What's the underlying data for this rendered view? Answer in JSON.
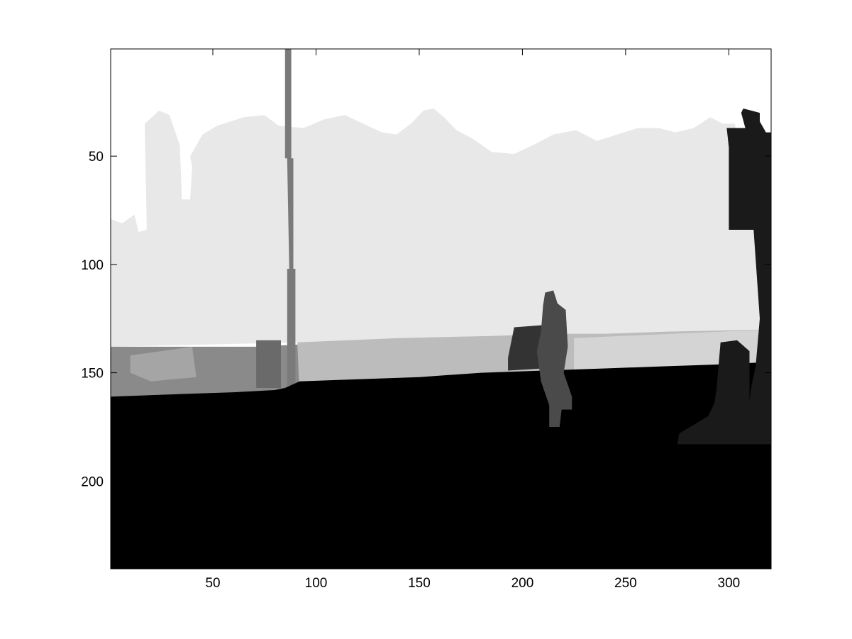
{
  "chart_data": {
    "type": "heatmap",
    "title": "",
    "xlabel": "",
    "ylabel": "",
    "image_size": [
      320,
      240
    ],
    "xlim": [
      0.5,
      320.5
    ],
    "ylim": [
      0.5,
      240.5
    ],
    "y_direction": "reverse",
    "colormap": "gray",
    "grid": false,
    "legend": "none",
    "x_ticks": [
      50,
      100,
      150,
      200,
      250,
      300
    ],
    "x_tick_labels": [
      "50",
      "100",
      "150",
      "200",
      "250",
      "300"
    ],
    "y_ticks": [
      50,
      100,
      150,
      200
    ],
    "y_tick_labels": [
      "50",
      "100",
      "150",
      "200"
    ],
    "regions": [
      {
        "name": "sky",
        "color": "#ffffff",
        "points": [
          [
            0.5,
            0.5
          ],
          [
            320.5,
            0.5
          ],
          [
            320.5,
            240.5
          ],
          [
            0.5,
            240.5
          ]
        ]
      },
      {
        "name": "buildings",
        "color": "#e8e8e8",
        "points": [
          [
            0.5,
            79
          ],
          [
            6,
            81
          ],
          [
            12,
            77
          ],
          [
            14,
            85
          ],
          [
            18,
            84
          ],
          [
            17,
            35
          ],
          [
            24,
            29
          ],
          [
            29,
            31
          ],
          [
            34,
            45
          ],
          [
            35,
            70
          ],
          [
            39,
            70
          ],
          [
            40,
            55
          ],
          [
            39,
            50
          ],
          [
            45,
            40
          ],
          [
            52,
            36
          ],
          [
            65,
            32
          ],
          [
            75,
            31
          ],
          [
            82,
            36
          ],
          [
            94,
            37
          ],
          [
            104,
            33
          ],
          [
            114,
            31
          ],
          [
            125,
            36
          ],
          [
            132,
            39
          ],
          [
            139,
            40
          ],
          [
            146,
            35
          ],
          [
            152,
            29
          ],
          [
            157,
            28
          ],
          [
            162,
            32
          ],
          [
            168,
            38
          ],
          [
            176,
            42
          ],
          [
            185,
            48
          ],
          [
            196,
            49
          ],
          [
            207,
            44
          ],
          [
            215,
            40
          ],
          [
            226,
            38
          ],
          [
            236,
            43
          ],
          [
            246,
            40
          ],
          [
            256,
            37
          ],
          [
            266,
            37
          ],
          [
            274,
            39
          ],
          [
            283,
            37
          ],
          [
            291,
            32
          ],
          [
            297,
            35
          ],
          [
            303,
            35
          ],
          [
            304,
            47
          ],
          [
            312,
            47
          ],
          [
            320.5,
            40
          ],
          [
            320.5,
            131
          ],
          [
            0.5,
            138
          ]
        ]
      },
      {
        "name": "wall",
        "color": "#bcbcbc",
        "points": [
          [
            91,
            136
          ],
          [
            140,
            134
          ],
          [
            185,
            133
          ],
          [
            215,
            132
          ],
          [
            240,
            132
          ],
          [
            270,
            131
          ],
          [
            320.5,
            130
          ],
          [
            320.5,
            175
          ],
          [
            180,
            175
          ],
          [
            91,
            176
          ]
        ]
      },
      {
        "name": "sidewalk",
        "color": "#d4d4d4",
        "points": [
          [
            225,
            134
          ],
          [
            320.5,
            130
          ],
          [
            320.5,
            160
          ],
          [
            225,
            160
          ]
        ]
      },
      {
        "name": "fence",
        "color": "#8a8a8a",
        "points": [
          [
            0.5,
            138
          ],
          [
            70,
            138
          ],
          [
            91,
            137
          ],
          [
            92,
            160
          ],
          [
            0.5,
            161
          ]
        ]
      },
      {
        "name": "car",
        "color": "#a5a5a5",
        "points": [
          [
            10,
            142
          ],
          [
            40,
            138
          ],
          [
            42,
            152
          ],
          [
            20,
            154
          ],
          [
            10,
            150
          ]
        ]
      },
      {
        "name": "pole",
        "color": "#7a7a7a",
        "points": [
          [
            85,
            0.5
          ],
          [
            88,
            0.5
          ],
          [
            88,
            51
          ],
          [
            89,
            51
          ],
          [
            89,
            102
          ],
          [
            90,
            102
          ],
          [
            90,
            155
          ],
          [
            88,
            156
          ],
          [
            86,
            156
          ],
          [
            86,
            102
          ],
          [
            87,
            102
          ],
          [
            86,
            51
          ],
          [
            85,
            51
          ]
        ]
      },
      {
        "name": "pole-base",
        "color": "#6a6a6a",
        "points": [
          [
            71,
            135
          ],
          [
            83,
            135
          ],
          [
            83,
            157
          ],
          [
            71,
            157
          ]
        ]
      },
      {
        "name": "road",
        "color": "#000000",
        "points": [
          [
            0.5,
            161
          ],
          [
            30,
            160
          ],
          [
            60,
            159
          ],
          [
            80,
            158
          ],
          [
            85,
            157
          ],
          [
            92,
            154
          ],
          [
            120,
            153
          ],
          [
            150,
            152
          ],
          [
            180,
            150
          ],
          [
            210,
            149
          ],
          [
            240,
            148
          ],
          [
            270,
            147
          ],
          [
            300,
            146
          ],
          [
            320.5,
            145
          ],
          [
            320.5,
            240.5
          ],
          [
            0.5,
            240.5
          ]
        ]
      },
      {
        "name": "bench",
        "color": "#333333",
        "points": [
          [
            193,
            143
          ],
          [
            196,
            129
          ],
          [
            210,
            128
          ],
          [
            210,
            148
          ],
          [
            193,
            149
          ]
        ]
      },
      {
        "name": "pedestrian",
        "color": "#4a4a4a",
        "points": [
          [
            211,
            113
          ],
          [
            215,
            112
          ],
          [
            217,
            118
          ],
          [
            221,
            121
          ],
          [
            222,
            138
          ],
          [
            220,
            150
          ],
          [
            224,
            161
          ],
          [
            224,
            167
          ],
          [
            219,
            167
          ],
          [
            218,
            175
          ],
          [
            213,
            175
          ],
          [
            213,
            165
          ],
          [
            209,
            154
          ],
          [
            207,
            140
          ],
          [
            209,
            131
          ],
          [
            210,
            119
          ]
        ]
      },
      {
        "name": "sign",
        "color": "#1a1a1a",
        "points": [
          [
            307,
            28
          ],
          [
            311,
            29
          ],
          [
            315,
            30
          ],
          [
            315,
            34
          ],
          [
            318,
            39
          ],
          [
            320.5,
            39
          ],
          [
            320.5,
            183
          ],
          [
            275,
            183
          ],
          [
            276,
            178
          ],
          [
            290,
            170
          ],
          [
            293,
            164
          ],
          [
            294,
            158
          ],
          [
            296,
            136
          ],
          [
            304,
            135
          ],
          [
            310,
            140
          ],
          [
            310,
            163
          ],
          [
            311,
            156
          ],
          [
            313,
            147
          ],
          [
            315,
            125
          ],
          [
            312,
            84
          ],
          [
            300,
            84
          ],
          [
            300,
            46
          ],
          [
            299,
            37
          ],
          [
            308,
            37
          ],
          [
            306,
            30
          ]
        ]
      }
    ]
  }
}
